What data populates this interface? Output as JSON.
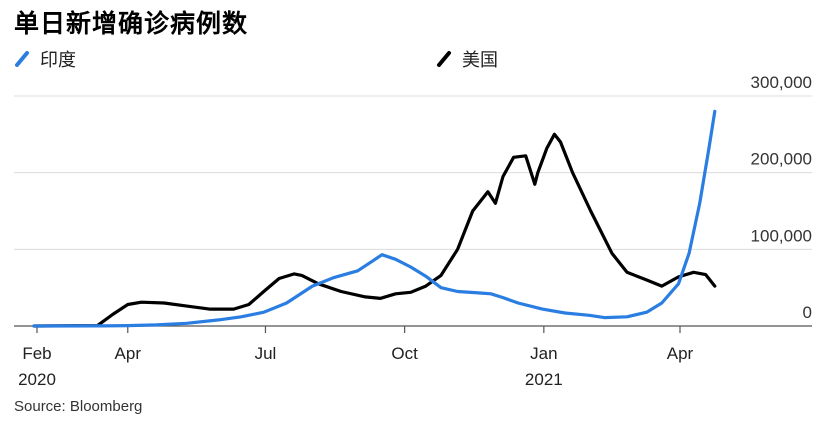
{
  "title": "单日新增确诊病例数",
  "source": "Source: Bloomberg",
  "chart_data": {
    "type": "line",
    "title": "单日新增确诊病例数",
    "xlabel": "",
    "ylabel": "",
    "ylim": [
      0,
      300000
    ],
    "yticks": [
      {
        "value": 0,
        "label": "0"
      },
      {
        "value": 100000,
        "label": "100,000"
      },
      {
        "value": 200000,
        "label": "200,000"
      },
      {
        "value": 300000,
        "label": "300,000"
      }
    ],
    "xticks": [
      {
        "date": "2020-02-01",
        "label": "Feb",
        "sublabel": "2020"
      },
      {
        "date": "2020-04-01",
        "label": "Apr",
        "sublabel": ""
      },
      {
        "date": "2020-07-01",
        "label": "Jul",
        "sublabel": ""
      },
      {
        "date": "2020-10-01",
        "label": "Oct",
        "sublabel": ""
      },
      {
        "date": "2021-01-01",
        "label": "Jan",
        "sublabel": "2021"
      },
      {
        "date": "2021-04-01",
        "label": "Apr",
        "sublabel": ""
      }
    ],
    "grid": true,
    "legend": "top-left",
    "series": [
      {
        "name": "印度",
        "color": "#2a7de1",
        "points": [
          [
            "2020-01-30",
            0
          ],
          [
            "2020-03-15",
            100
          ],
          [
            "2020-04-01",
            500
          ],
          [
            "2020-04-20",
            1500
          ],
          [
            "2020-05-10",
            3500
          ],
          [
            "2020-05-31",
            8000
          ],
          [
            "2020-06-15",
            12000
          ],
          [
            "2020-06-30",
            18000
          ],
          [
            "2020-07-15",
            30000
          ],
          [
            "2020-08-01",
            52000
          ],
          [
            "2020-08-15",
            63000
          ],
          [
            "2020-08-31",
            72000
          ],
          [
            "2020-09-10",
            85000
          ],
          [
            "2020-09-16",
            93000
          ],
          [
            "2020-09-25",
            87000
          ],
          [
            "2020-10-05",
            77000
          ],
          [
            "2020-10-15",
            65000
          ],
          [
            "2020-10-25",
            50000
          ],
          [
            "2020-11-05",
            45000
          ],
          [
            "2020-11-20",
            43000
          ],
          [
            "2020-11-27",
            42000
          ],
          [
            "2020-12-05",
            37000
          ],
          [
            "2020-12-15",
            30000
          ],
          [
            "2020-12-31",
            22000
          ],
          [
            "2021-01-15",
            17000
          ],
          [
            "2021-01-31",
            14000
          ],
          [
            "2021-02-10",
            11000
          ],
          [
            "2021-02-25",
            12000
          ],
          [
            "2021-03-10",
            18000
          ],
          [
            "2021-03-20",
            30000
          ],
          [
            "2021-03-31",
            55000
          ],
          [
            "2021-04-07",
            95000
          ],
          [
            "2021-04-14",
            160000
          ],
          [
            "2021-04-20",
            230000
          ],
          [
            "2021-04-24",
            280000
          ]
        ]
      },
      {
        "name": "美国",
        "color": "#000000",
        "points": [
          [
            "2020-01-30",
            0
          ],
          [
            "2020-03-12",
            500
          ],
          [
            "2020-03-22",
            15000
          ],
          [
            "2020-04-01",
            28000
          ],
          [
            "2020-04-10",
            31000
          ],
          [
            "2020-04-25",
            30000
          ],
          [
            "2020-05-10",
            26000
          ],
          [
            "2020-05-25",
            22000
          ],
          [
            "2020-06-10",
            22000
          ],
          [
            "2020-06-20",
            28000
          ],
          [
            "2020-07-01",
            47000
          ],
          [
            "2020-07-10",
            62000
          ],
          [
            "2020-07-20",
            68000
          ],
          [
            "2020-07-25",
            66000
          ],
          [
            "2020-08-05",
            55000
          ],
          [
            "2020-08-20",
            45000
          ],
          [
            "2020-09-05",
            38000
          ],
          [
            "2020-09-15",
            36000
          ],
          [
            "2020-09-25",
            42000
          ],
          [
            "2020-10-05",
            44000
          ],
          [
            "2020-10-15",
            52000
          ],
          [
            "2020-10-25",
            66000
          ],
          [
            "2020-11-05",
            100000
          ],
          [
            "2020-11-15",
            150000
          ],
          [
            "2020-11-25",
            175000
          ],
          [
            "2020-11-30",
            160000
          ],
          [
            "2020-12-05",
            195000
          ],
          [
            "2020-12-12",
            220000
          ],
          [
            "2020-12-20",
            222000
          ],
          [
            "2020-12-26",
            185000
          ],
          [
            "2020-12-28",
            200000
          ],
          [
            "2021-01-03",
            232000
          ],
          [
            "2021-01-08",
            250000
          ],
          [
            "2021-01-12",
            240000
          ],
          [
            "2021-01-20",
            200000
          ],
          [
            "2021-02-01",
            150000
          ],
          [
            "2021-02-15",
            95000
          ],
          [
            "2021-02-25",
            70000
          ],
          [
            "2021-03-10",
            60000
          ],
          [
            "2021-03-20",
            52000
          ],
          [
            "2021-03-31",
            64000
          ],
          [
            "2021-04-10",
            70000
          ],
          [
            "2021-04-18",
            67000
          ],
          [
            "2021-04-24",
            52000
          ]
        ]
      }
    ]
  }
}
